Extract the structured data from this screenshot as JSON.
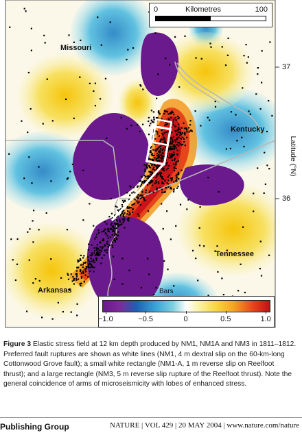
{
  "map": {
    "scale": {
      "title": "Kilometres",
      "min_label": "0",
      "max_label": "100",
      "filled_fraction": 0.5
    },
    "states": {
      "missouri": "Missouri",
      "kentucky": "Kentucky",
      "tennessee": "Tennessee",
      "arkansas": "Arkansas"
    },
    "latitude_axis": {
      "label": "Latitude (°N)",
      "ticks": [
        "37",
        "36"
      ]
    },
    "colorbar": {
      "title": "Bars",
      "tick_labels": [
        "−1.0",
        "−0.5",
        "0",
        "0.5",
        "1.0"
      ],
      "range": [
        -1.0,
        1.0
      ]
    },
    "colors": {
      "negative_strong": "#6a1a8c",
      "negative_mid": "#1f5fb4",
      "negative_weak": "#7fd0e0",
      "neutral": "#ffffff",
      "positive_weak": "#f7d640",
      "positive_mid": "#f5a623",
      "positive_strong": "#c01016",
      "faults": "#ffffff",
      "seismicity": "#000000"
    }
  },
  "caption": {
    "label": "Figure 3",
    "text": " Elastic stress field at 12 km depth produced by NM1, NM1A and NM3 in 1811–1812. Preferred fault ruptures are shown as white lines (NM1, 4 m dextral slip on the 60-km-long Cottonwood Grove fault); a small white rectangle (NM1-A, 1 m reverse slip on Reelfoot thrust); and a large rectangle (NM3, 5 m reverse slip rupture of the Reelfoot thrust). Note the general coincidence of arms of microseismicity with lobes of enhanced stress."
  },
  "footer": {
    "left": "Publishing Group",
    "right": "NATURE | VOL 429 | 20 MAY 2004 | www.nature.com/nature"
  }
}
